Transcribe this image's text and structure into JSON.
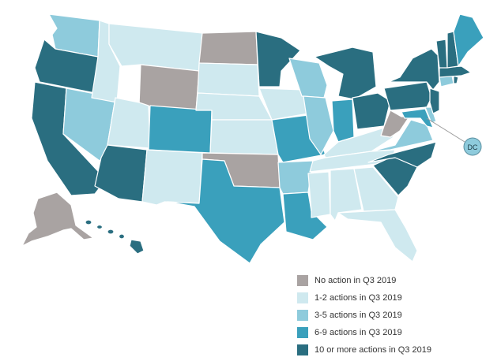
{
  "colors": {
    "none": "#a9a3a2",
    "c1": "#cfe9ef",
    "c3": "#8ecbdc",
    "c6": "#3aa0bc",
    "c10": "#2a6e80"
  },
  "legend": [
    {
      "key": "none",
      "label": "No action in Q3 2019"
    },
    {
      "key": "c1",
      "label": "1-2 actions in Q3 2019"
    },
    {
      "key": "c3",
      "label": "3-5 actions in Q3 2019"
    },
    {
      "key": "c6",
      "label": "6-9 actions in Q3 2019"
    },
    {
      "key": "c10",
      "label": "10 or more actions in Q3 2019"
    }
  ],
  "dc_label": "DC",
  "states": {
    "WA": "c3",
    "OR": "c10",
    "CA": "c10",
    "NV": "c3",
    "ID": "c1",
    "MT": "c1",
    "WY": "none",
    "UT": "c1",
    "AZ": "c10",
    "CO": "c6",
    "NM": "c1",
    "ND": "none",
    "SD": "c1",
    "NE": "c1",
    "KS": "c1",
    "OK": "none",
    "TX": "c6",
    "MN": "c10",
    "IA": "c1",
    "MO": "c6",
    "AR": "c3",
    "LA": "c6",
    "WI": "c3",
    "IL": "c3",
    "MI": "c10",
    "IN": "c6",
    "OH": "c10",
    "KY": "c1",
    "TN": "c1",
    "MS": "c1",
    "AL": "c1",
    "GA": "c1",
    "FL": "c1",
    "SC": "c10",
    "NC": "c10",
    "VA": "c3",
    "WV": "none",
    "PA": "c10",
    "NY": "c10",
    "VT": "c10",
    "NH": "c10",
    "ME": "c6",
    "MA": "c10",
    "CT": "c3",
    "RI": "c10",
    "NJ": "c10",
    "DE": "c3",
    "MD": "c6",
    "DC": "c3",
    "AK": "none",
    "HI": "c10"
  }
}
